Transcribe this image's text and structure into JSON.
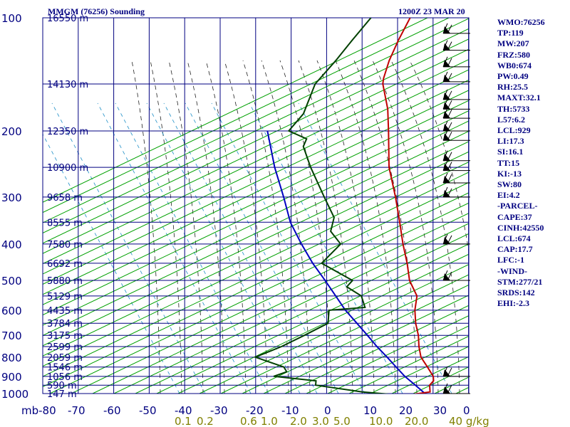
{
  "header": {
    "station": "MMGM (76256) Sounding",
    "time": "1200Z 23 MAR 20"
  },
  "colors": {
    "grid": "#000080",
    "dry_adiabat": "#00a000",
    "moist_adiabat": "#222222",
    "mixing_ratio": "#3399cc",
    "temperature": "#c00000",
    "dewpoint": "#004000",
    "parcel": "#0000c0",
    "mixing_label": "#808000"
  },
  "indices": [
    "WMO:76256",
    "TP:119",
    "MW:207",
    "FRZ:580",
    "WB0:674",
    "PW:0.49",
    "RH:25.5",
    "MAXT:32.1",
    "TH:5733",
    "L57:6.2",
    "LCL:929",
    "LI:17.3",
    "SI:16.1",
    "TT:15",
    "KI:-13",
    "SW:80",
    "EI:4.2",
    "-PARCEL-",
    "CAPE:37",
    "CINH:42550",
    "LCL:674",
    "CAP:17.7",
    "LFC:-1",
    "-WIND-",
    "STM:277/21",
    "SRDS:142",
    "EHI:-2.3"
  ],
  "chart_data": {
    "type": "skew-t",
    "title": "MMGM (76256) Sounding",
    "pressure_unit": "mb",
    "pressure_range": [
      1000,
      100
    ],
    "temperature_range": [
      -80,
      0
    ],
    "pressure_ticks": [
      {
        "p": 100,
        "label": "100"
      },
      {
        "p": 200,
        "label": "200"
      },
      {
        "p": 300,
        "label": "300"
      },
      {
        "p": 400,
        "label": "400"
      },
      {
        "p": 500,
        "label": "500"
      },
      {
        "p": 600,
        "label": "600"
      },
      {
        "p": 700,
        "label": "700"
      },
      {
        "p": 800,
        "label": "800"
      },
      {
        "p": 900,
        "label": "900"
      },
      {
        "p": 1000,
        "label": "1000"
      }
    ],
    "height_labels": [
      {
        "p": 100,
        "label": "16550 m"
      },
      {
        "p": 150,
        "label": "14130 m"
      },
      {
        "p": 200,
        "label": "12350 m"
      },
      {
        "p": 250,
        "label": "10900 m"
      },
      {
        "p": 300,
        "label": "9658 m"
      },
      {
        "p": 350,
        "label": "8555 m"
      },
      {
        "p": 400,
        "label": "7580 m"
      },
      {
        "p": 450,
        "label": "6692 m"
      },
      {
        "p": 500,
        "label": "5880 m"
      },
      {
        "p": 550,
        "label": "5129 m"
      },
      {
        "p": 600,
        "label": "4435 m"
      },
      {
        "p": 650,
        "label": "3784 m"
      },
      {
        "p": 700,
        "label": "3175 m"
      },
      {
        "p": 750,
        "label": "2599 m"
      },
      {
        "p": 800,
        "label": "2059 m"
      },
      {
        "p": 850,
        "label": "1546 m"
      },
      {
        "p": 900,
        "label": "1056 m"
      },
      {
        "p": 950,
        "label": "590 m"
      },
      {
        "p": 1000,
        "label": "147 m"
      }
    ],
    "temp_ticks": [
      "mb-80",
      "-70",
      "-60",
      "-50",
      "-40",
      "-30",
      "-20",
      "-10",
      "0",
      "10",
      "20",
      "30",
      "0"
    ],
    "mixing_ratio_labels": [
      "0.1",
      "0.2",
      "0.6",
      "1.0",
      "2.0",
      "3.0",
      "5.0",
      "10.0",
      "20.0",
      "40 g/kg"
    ],
    "temperature_profile": [
      {
        "p": 1004,
        "t": 24.3
      },
      {
        "p": 990,
        "t": 28.3
      },
      {
        "p": 950,
        "t": 26.5
      },
      {
        "p": 925,
        "t": 26.5
      },
      {
        "p": 900,
        "t": 25.3
      },
      {
        "p": 850,
        "t": 21.3
      },
      {
        "p": 800,
        "t": 17.0
      },
      {
        "p": 750,
        "t": 13.8
      },
      {
        "p": 700,
        "t": 10.8
      },
      {
        "p": 650,
        "t": 7.0
      },
      {
        "p": 600,
        "t": 3.5
      },
      {
        "p": 550,
        "t": 0.5
      },
      {
        "p": 500,
        "t": -5.5
      },
      {
        "p": 450,
        "t": -10.5
      },
      {
        "p": 400,
        "t": -16.5
      },
      {
        "p": 350,
        "t": -22.9
      },
      {
        "p": 300,
        "t": -30.4
      },
      {
        "p": 250,
        "t": -39.7
      },
      {
        "p": 200,
        "t": -49.0
      },
      {
        "p": 175,
        "t": -54.7
      },
      {
        "p": 150,
        "t": -62.4
      },
      {
        "p": 145,
        "t": -63.6
      },
      {
        "p": 130,
        "t": -66.5
      },
      {
        "p": 115,
        "t": -69.0
      },
      {
        "p": 100,
        "t": -71.4
      }
    ],
    "dewpoint_profile": [
      {
        "p": 1004,
        "t": 17.3
      },
      {
        "p": 990,
        "t": 9.3
      },
      {
        "p": 950,
        "t": -5.5
      },
      {
        "p": 925,
        "t": -6.5
      },
      {
        "p": 900,
        "t": -19.5
      },
      {
        "p": 875,
        "t": -17.0
      },
      {
        "p": 850,
        "t": -19.0
      },
      {
        "p": 800,
        "t": -29.5
      },
      {
        "p": 750,
        "t": -24.8
      },
      {
        "p": 700,
        "t": -21.2
      },
      {
        "p": 650,
        "t": -17.6
      },
      {
        "p": 600,
        "t": -20.6
      },
      {
        "p": 590,
        "t": -11.2
      },
      {
        "p": 550,
        "t": -15.1
      },
      {
        "p": 520,
        "t": -21.5
      },
      {
        "p": 500,
        "t": -21.5
      },
      {
        "p": 450,
        "t": -34.5
      },
      {
        "p": 400,
        "t": -34.0
      },
      {
        "p": 370,
        "t": -40.0
      },
      {
        "p": 340,
        "t": -42.5
      },
      {
        "p": 300,
        "t": -50.4
      },
      {
        "p": 250,
        "t": -61.7
      },
      {
        "p": 220,
        "t": -69.0
      },
      {
        "p": 210,
        "t": -70.0
      },
      {
        "p": 200,
        "t": -77.0
      },
      {
        "p": 180,
        "t": -77.2
      },
      {
        "p": 150,
        "t": -81.4
      },
      {
        "p": 130,
        "t": -81.5
      },
      {
        "p": 115,
        "t": -82.0
      },
      {
        "p": 100,
        "t": -82.4
      }
    ],
    "parcel_profile": [
      {
        "p": 1000,
        "t": 27.3
      },
      {
        "p": 950,
        "t": 22.5
      },
      {
        "p": 900,
        "t": 17.3
      },
      {
        "p": 850,
        "t": 12.5
      },
      {
        "p": 800,
        "t": 7.5
      },
      {
        "p": 750,
        "t": 2.0
      },
      {
        "p": 700,
        "t": -3.5
      },
      {
        "p": 650,
        "t": -9.5
      },
      {
        "p": 600,
        "t": -16.0
      },
      {
        "p": 550,
        "t": -22.3
      },
      {
        "p": 500,
        "t": -29.2
      },
      {
        "p": 450,
        "t": -37.0
      },
      {
        "p": 400,
        "t": -45.0
      },
      {
        "p": 350,
        "t": -53.6
      },
      {
        "p": 300,
        "t": -61.8
      },
      {
        "p": 250,
        "t": -71.8
      },
      {
        "p": 200,
        "t": -83.0
      }
    ],
    "wind_barbs": [
      {
        "p": 110
      },
      {
        "p": 122
      },
      {
        "p": 135
      },
      {
        "p": 148
      },
      {
        "p": 165
      },
      {
        "p": 175
      },
      {
        "p": 185
      },
      {
        "p": 200
      },
      {
        "p": 212
      },
      {
        "p": 240
      },
      {
        "p": 255
      },
      {
        "p": 275
      },
      {
        "p": 300
      },
      {
        "p": 400
      },
      {
        "p": 500
      },
      {
        "p": 900
      },
      {
        "p": 1000
      }
    ]
  }
}
